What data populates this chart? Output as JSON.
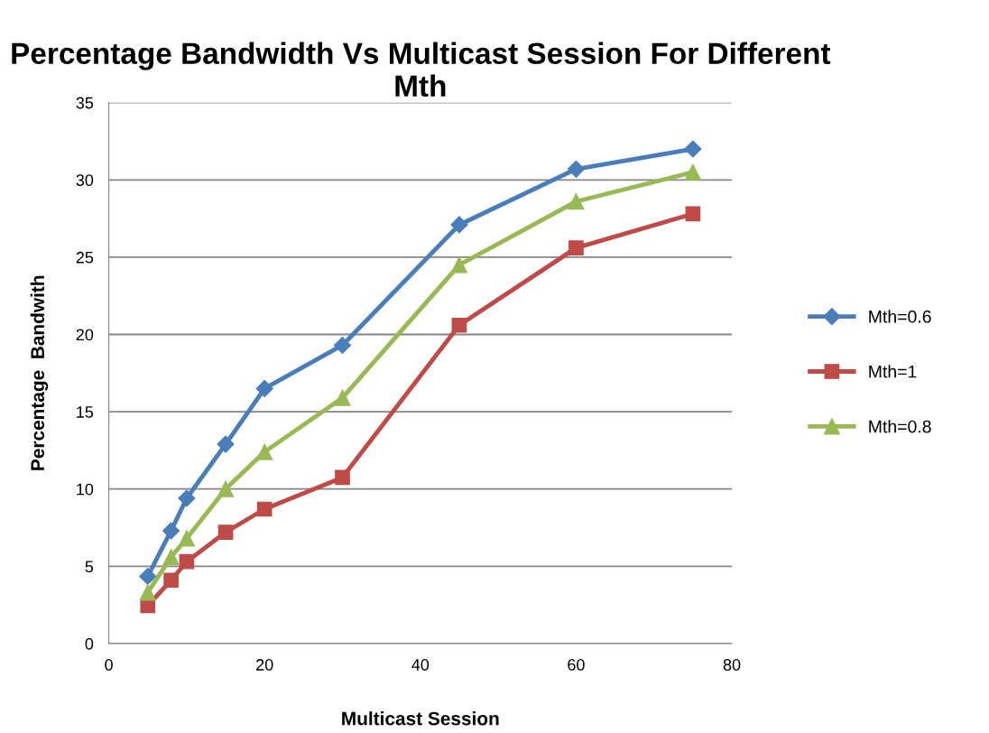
{
  "chart_data": {
    "type": "line",
    "title": "Percentage Bandwidth Vs Multicast Session For Different Mth",
    "xlabel": "Multicast Session",
    "ylabel": "Percentage  Bandwith",
    "x": [
      5,
      8,
      10,
      15,
      20,
      30,
      45,
      60,
      75
    ],
    "series": [
      {
        "name": "Mth=0.6",
        "color": "#4a7ebb",
        "marker": "diamond",
        "values": [
          4.35,
          7.3,
          9.4,
          12.9,
          16.5,
          19.3,
          27.1,
          30.7,
          32.0
        ]
      },
      {
        "name": "Mth=1",
        "color": "#be4b48",
        "marker": "square",
        "values": [
          2.45,
          4.1,
          5.3,
          7.2,
          8.7,
          10.75,
          20.6,
          25.6,
          27.8
        ]
      },
      {
        "name": "Mth=0.8",
        "color": "#98b954",
        "marker": "triangle",
        "values": [
          3.3,
          5.6,
          6.8,
          10.0,
          12.4,
          15.9,
          24.5,
          28.6,
          30.5
        ]
      }
    ],
    "xlim": [
      0,
      80
    ],
    "xticks": [
      0,
      20,
      40,
      60,
      80
    ],
    "ylim": [
      0,
      35
    ],
    "yticks": [
      0,
      5,
      10,
      15,
      20,
      25,
      30,
      35
    ],
    "grid": "y",
    "legend": "right",
    "line_style": "solid"
  }
}
